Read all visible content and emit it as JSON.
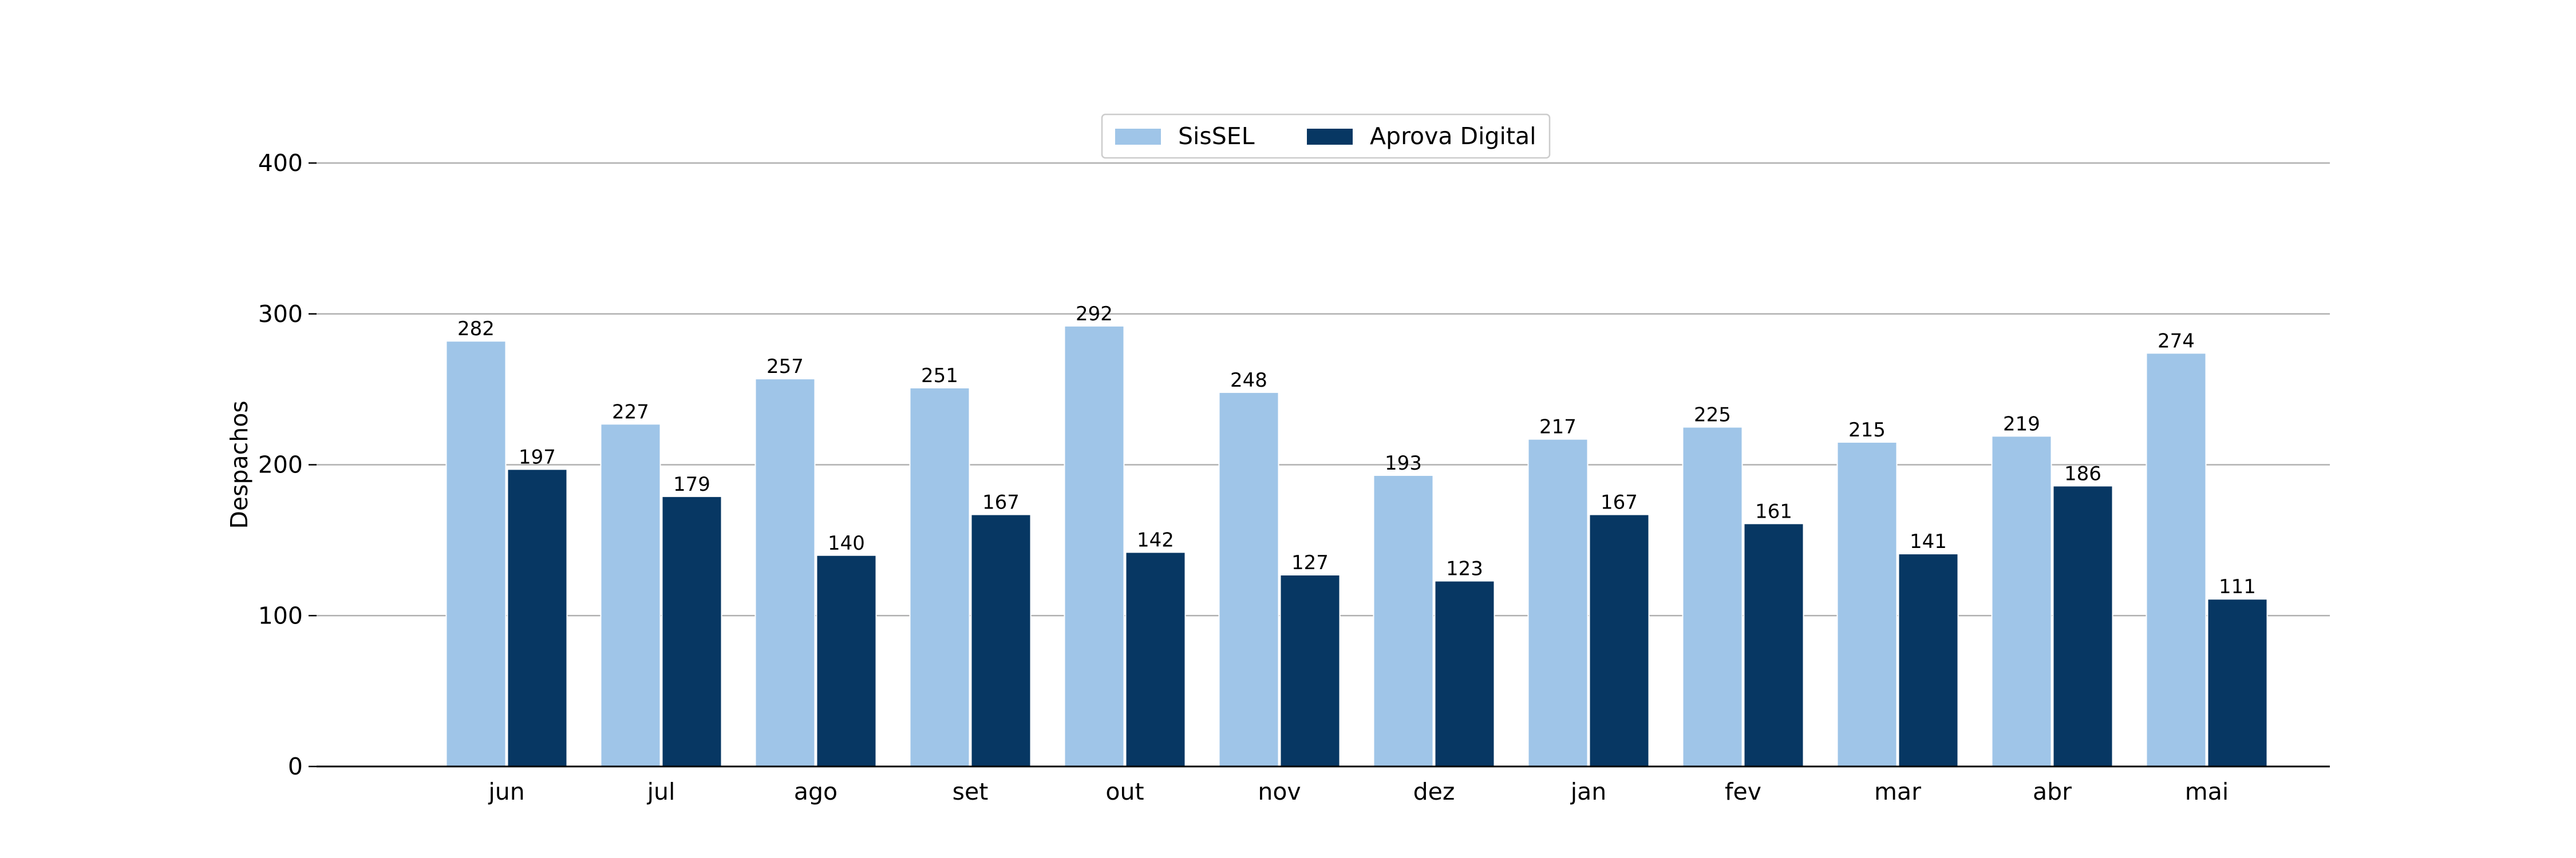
{
  "chart_data": {
    "type": "bar",
    "title": "",
    "xlabel": "",
    "ylabel": "Despachos",
    "ylim": [
      0,
      400
    ],
    "yticks": [
      0,
      100,
      200,
      300,
      400
    ],
    "grid": "horizontal",
    "legend_position": "top-center",
    "categories": [
      "jun",
      "jul",
      "ago",
      "set",
      "out",
      "nov",
      "dez",
      "jan",
      "fev",
      "mar",
      "abr",
      "mai"
    ],
    "series": [
      {
        "name": "SisSEL",
        "color": "#9fc5e8",
        "values": [
          282,
          227,
          257,
          251,
          292,
          248,
          193,
          217,
          225,
          215,
          219,
          274
        ]
      },
      {
        "name": "Aprova Digital",
        "color": "#073763",
        "values": [
          197,
          179,
          140,
          167,
          142,
          127,
          123,
          167,
          161,
          141,
          186,
          111
        ]
      }
    ]
  }
}
